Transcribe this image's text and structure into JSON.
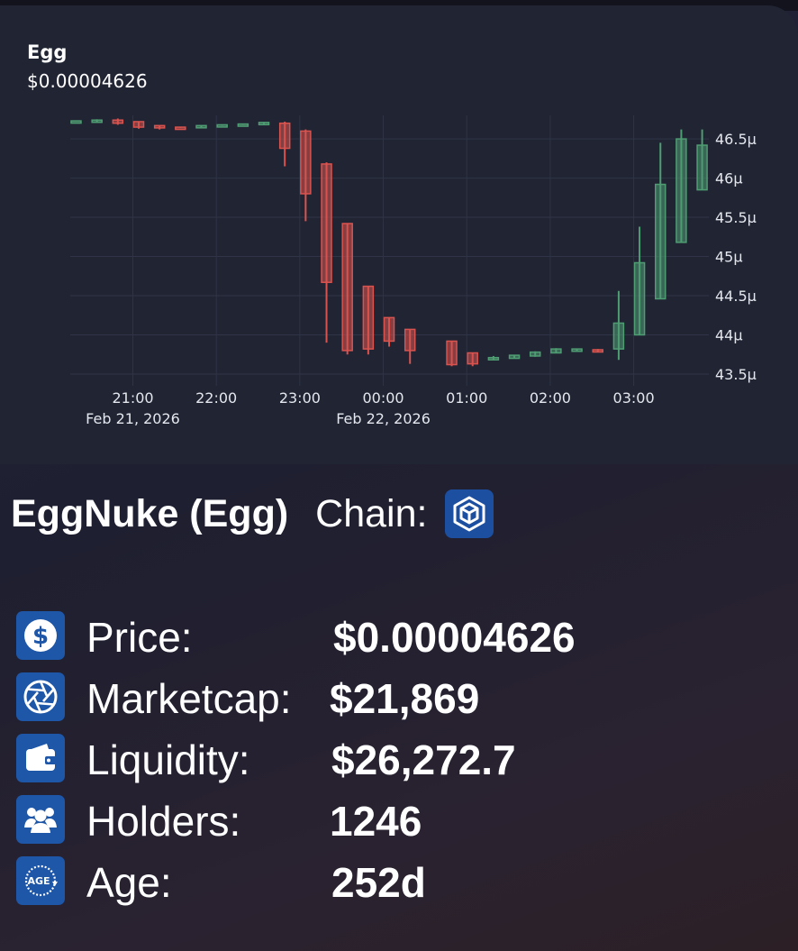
{
  "chart": {
    "symbol": "Egg",
    "price_label": "$0.00004626"
  },
  "chart_data": {
    "type": "candlestick",
    "title": "Egg",
    "subtitle": "$0.00004626",
    "y_unit_suffix": "µ",
    "ylim": [
      43.35,
      46.8
    ],
    "y_ticks": [
      {
        "value": 43.5,
        "label": "43.5µ"
      },
      {
        "value": 44,
        "label": "44µ"
      },
      {
        "value": 44.5,
        "label": "44.5µ"
      },
      {
        "value": 45,
        "label": "45µ"
      },
      {
        "value": 45.5,
        "label": "45.5µ"
      },
      {
        "value": 46,
        "label": "46µ"
      },
      {
        "value": 46.5,
        "label": "46.5µ"
      }
    ],
    "x_range_hours": [
      20.25,
      27.9
    ],
    "x_ticks": [
      {
        "value": 21,
        "label": "21:00",
        "sublabel": "Feb 21, 2026"
      },
      {
        "value": 22,
        "label": "22:00",
        "sublabel": ""
      },
      {
        "value": 23,
        "label": "23:00",
        "sublabel": ""
      },
      {
        "value": 24,
        "label": "00:00",
        "sublabel": "Feb 22, 2026"
      },
      {
        "value": 25,
        "label": "01:00",
        "sublabel": ""
      },
      {
        "value": 26,
        "label": "02:00",
        "sublabel": ""
      },
      {
        "value": 27,
        "label": "03:00",
        "sublabel": ""
      }
    ],
    "up_color": "#4f9d72",
    "down_color": "#d9534f",
    "candles": [
      {
        "t": 20.32,
        "o": 46.73,
        "h": 46.73,
        "l": 46.73,
        "c": 46.73
      },
      {
        "t": 20.57,
        "o": 46.73,
        "h": 46.75,
        "l": 46.71,
        "c": 46.74
      },
      {
        "t": 20.82,
        "o": 46.74,
        "h": 46.76,
        "l": 46.68,
        "c": 46.7
      },
      {
        "t": 21.07,
        "o": 46.72,
        "h": 46.72,
        "l": 46.63,
        "c": 46.65
      },
      {
        "t": 21.32,
        "o": 46.67,
        "h": 46.67,
        "l": 46.62,
        "c": 46.64
      },
      {
        "t": 21.57,
        "o": 46.65,
        "h": 46.65,
        "l": 46.64,
        "c": 46.64
      },
      {
        "t": 21.82,
        "o": 46.65,
        "h": 46.67,
        "l": 46.65,
        "c": 46.67
      },
      {
        "t": 22.07,
        "o": 46.67,
        "h": 46.68,
        "l": 46.67,
        "c": 46.68
      },
      {
        "t": 22.32,
        "o": 46.68,
        "h": 46.69,
        "l": 46.68,
        "c": 46.69
      },
      {
        "t": 22.57,
        "o": 46.69,
        "h": 46.71,
        "l": 46.69,
        "c": 46.71
      },
      {
        "t": 22.82,
        "o": 46.7,
        "h": 46.72,
        "l": 46.15,
        "c": 46.38
      },
      {
        "t": 23.07,
        "o": 46.6,
        "h": 46.62,
        "l": 45.45,
        "c": 45.8
      },
      {
        "t": 23.32,
        "o": 46.18,
        "h": 46.2,
        "l": 43.9,
        "c": 44.67
      },
      {
        "t": 23.57,
        "o": 45.42,
        "h": 45.42,
        "l": 43.75,
        "c": 43.8
      },
      {
        "t": 23.82,
        "o": 44.62,
        "h": 44.62,
        "l": 43.75,
        "c": 43.82
      },
      {
        "t": 24.07,
        "o": 44.22,
        "h": 44.22,
        "l": 43.85,
        "c": 43.92
      },
      {
        "t": 24.32,
        "o": 44.07,
        "h": 44.07,
        "l": 43.63,
        "c": 43.8
      },
      {
        "t": 24.82,
        "o": 43.92,
        "h": 43.92,
        "l": 43.6,
        "c": 43.62
      },
      {
        "t": 25.07,
        "o": 43.77,
        "h": 43.77,
        "l": 43.6,
        "c": 43.63
      },
      {
        "t": 25.32,
        "o": 43.69,
        "h": 43.73,
        "l": 43.68,
        "c": 43.71
      },
      {
        "t": 25.57,
        "o": 43.7,
        "h": 43.74,
        "l": 43.7,
        "c": 43.74
      },
      {
        "t": 25.82,
        "o": 43.73,
        "h": 43.79,
        "l": 43.72,
        "c": 43.78
      },
      {
        "t": 26.07,
        "o": 43.77,
        "h": 43.83,
        "l": 43.77,
        "c": 43.82
      },
      {
        "t": 26.32,
        "o": 43.79,
        "h": 43.82,
        "l": 43.79,
        "c": 43.82
      },
      {
        "t": 26.57,
        "o": 43.81,
        "h": 43.82,
        "l": 43.78,
        "c": 43.79
      },
      {
        "t": 26.82,
        "o": 43.82,
        "h": 44.56,
        "l": 43.68,
        "c": 44.15
      },
      {
        "t": 27.07,
        "o": 44.0,
        "h": 45.38,
        "l": 44.0,
        "c": 44.92
      },
      {
        "t": 27.32,
        "o": 44.46,
        "h": 46.45,
        "l": 44.46,
        "c": 45.92
      },
      {
        "t": 27.57,
        "o": 45.18,
        "h": 46.62,
        "l": 45.18,
        "c": 46.5
      },
      {
        "t": 27.82,
        "o": 45.85,
        "h": 46.62,
        "l": 45.85,
        "c": 46.42
      }
    ]
  },
  "token": {
    "name": "EggNuke (Egg)",
    "chain_label": "Chain:",
    "chain_icon": "bnb-chain-icon"
  },
  "stats": [
    {
      "key": "price",
      "icon": "dollar-icon",
      "label": "Price:",
      "value": "$0.00004626"
    },
    {
      "key": "marketcap",
      "icon": "aperture-icon",
      "label": "Marketcap:",
      "value": "$21,869"
    },
    {
      "key": "liquidity",
      "icon": "wallet-icon",
      "label": "Liquidity:",
      "value": "$26,272.7"
    },
    {
      "key": "holders",
      "icon": "users-icon",
      "label": "Holders:",
      "value": "1246"
    },
    {
      "key": "age",
      "icon": "age-icon",
      "label": "Age:",
      "value": "252d",
      "icon_text": "AGE"
    }
  ]
}
